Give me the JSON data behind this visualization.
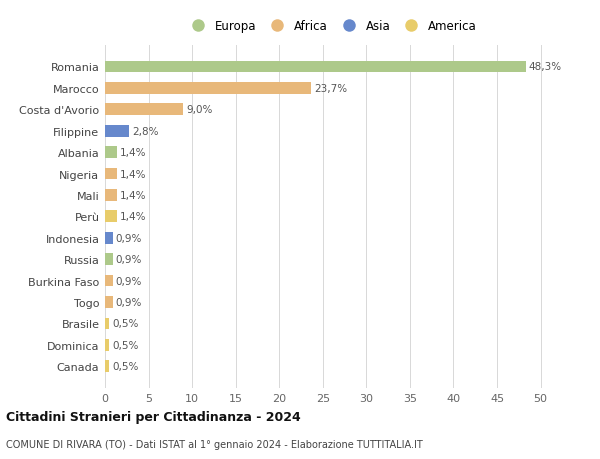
{
  "categories": [
    "Romania",
    "Marocco",
    "Costa d'Avorio",
    "Filippine",
    "Albania",
    "Nigeria",
    "Mali",
    "Perù",
    "Indonesia",
    "Russia",
    "Burkina Faso",
    "Togo",
    "Brasile",
    "Dominica",
    "Canada"
  ],
  "values": [
    48.3,
    23.7,
    9.0,
    2.8,
    1.4,
    1.4,
    1.4,
    1.4,
    0.9,
    0.9,
    0.9,
    0.9,
    0.5,
    0.5,
    0.5
  ],
  "labels": [
    "48,3%",
    "23,7%",
    "9,0%",
    "2,8%",
    "1,4%",
    "1,4%",
    "1,4%",
    "1,4%",
    "0,9%",
    "0,9%",
    "0,9%",
    "0,9%",
    "0,5%",
    "0,5%",
    "0,5%"
  ],
  "continents": [
    "Europa",
    "Africa",
    "Africa",
    "Asia",
    "Europa",
    "Africa",
    "Africa",
    "America",
    "Asia",
    "Europa",
    "Africa",
    "Africa",
    "America",
    "America",
    "America"
  ],
  "continent_colors": {
    "Europa": "#adc98a",
    "Africa": "#e8b87a",
    "Asia": "#6688cc",
    "America": "#e8cc6a"
  },
  "legend_order": [
    "Europa",
    "Africa",
    "Asia",
    "America"
  ],
  "title": "Cittadini Stranieri per Cittadinanza - 2024",
  "subtitle": "COMUNE DI RIVARA (TO) - Dati ISTAT al 1° gennaio 2024 - Elaborazione TUTTITALIA.IT",
  "xlim": [
    0,
    52
  ],
  "xticks": [
    0,
    5,
    10,
    15,
    20,
    25,
    30,
    35,
    40,
    45,
    50
  ],
  "background_color": "#ffffff",
  "grid_color": "#d8d8d8",
  "bar_height": 0.55,
  "label_fontsize": 7.5,
  "ytick_fontsize": 8,
  "xtick_fontsize": 8,
  "legend_fontsize": 8.5,
  "title_fontsize": 9,
  "subtitle_fontsize": 7
}
